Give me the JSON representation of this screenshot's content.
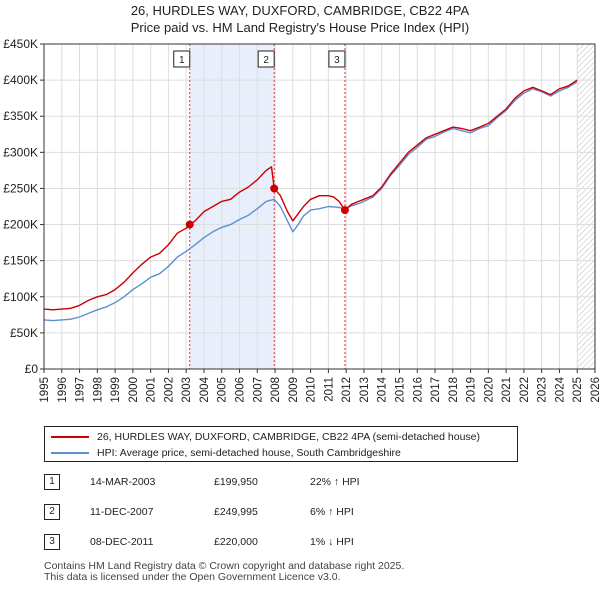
{
  "title_line1": "26, HURDLES WAY, DUXFORD, CAMBRIDGE, CB22 4PA",
  "title_line2": "Price paid vs. HM Land Registry's House Price Index (HPI)",
  "legend": {
    "red_label": "26, HURDLES WAY, DUXFORD, CAMBRIDGE, CB22 4PA (semi-detached house)",
    "blue_label": "HPI: Average price, semi-detached house, South Cambridgeshire"
  },
  "sales": [
    {
      "num": "1",
      "date": "14-MAR-2003",
      "price": "£199,950",
      "hpi": "22% ↑ HPI"
    },
    {
      "num": "2",
      "date": "11-DEC-2007",
      "price": "£249,995",
      "hpi": "6% ↑ HPI"
    },
    {
      "num": "3",
      "date": "08-DEC-2011",
      "price": "£220,000",
      "hpi": "1% ↓ HPI"
    }
  ],
  "footer": {
    "line1": "Contains HM Land Registry data © Crown copyright and database right 2025.",
    "line2": "This data is licensed under the Open Government Licence v3.0."
  },
  "colors": {
    "red": "#cc0000",
    "blue": "#5b8fd4",
    "shade": "#e8eefa",
    "hatch": "#bbbbbb",
    "vline": "#ee3333"
  },
  "chart_data": {
    "type": "line",
    "title": "Price paid vs. HM Land Registry's House Price Index (HPI)",
    "xlabel": "",
    "ylabel": "",
    "xlim": [
      1995,
      2026
    ],
    "ylim": [
      0,
      450000
    ],
    "y_ticks": [
      0,
      50000,
      100000,
      150000,
      200000,
      250000,
      300000,
      350000,
      400000,
      450000
    ],
    "y_tick_labels": [
      "£0",
      "£50K",
      "£100K",
      "£150K",
      "£200K",
      "£250K",
      "£300K",
      "£350K",
      "£400K",
      "£450K"
    ],
    "x_ticks": [
      1995,
      1996,
      1997,
      1998,
      1999,
      2000,
      2001,
      2002,
      2003,
      2004,
      2005,
      2006,
      2007,
      2008,
      2009,
      2010,
      2011,
      2012,
      2013,
      2014,
      2015,
      2016,
      2017,
      2018,
      2019,
      2020,
      2021,
      2022,
      2023,
      2024,
      2025,
      2026
    ],
    "x_tick_labels": [
      "1995",
      "1996",
      "1997",
      "1998",
      "1999",
      "2000",
      "2001",
      "2002",
      "2003",
      "2004",
      "2005",
      "2006",
      "2007",
      "2008",
      "2009",
      "2010",
      "2011",
      "2012",
      "2013",
      "2014",
      "2015",
      "2016",
      "2017",
      "2018",
      "2019",
      "2020",
      "2021",
      "2022",
      "2023",
      "2024",
      "2025",
      "2026"
    ],
    "shaded_ranges": [
      [
        2003.2,
        2007.95
      ]
    ],
    "future_hatch_from": 2025.0,
    "sale_markers": [
      {
        "label": "1",
        "x": 2003.2,
        "y": 199950
      },
      {
        "label": "2",
        "x": 2007.95,
        "y": 249995
      },
      {
        "label": "3",
        "x": 2011.93,
        "y": 220000
      }
    ],
    "series": [
      {
        "name": "26, HURDLES WAY, DUXFORD, CAMBRIDGE, CB22 4PA (semi-detached house)",
        "color": "#cc0000",
        "x": [
          1995.0,
          1995.5,
          1996.0,
          1996.5,
          1997.0,
          1997.5,
          1998.0,
          1998.5,
          1999.0,
          1999.5,
          2000.0,
          2000.5,
          2001.0,
          2001.5,
          2002.0,
          2002.5,
          2003.0,
          2003.2,
          2003.5,
          2004.0,
          2004.5,
          2005.0,
          2005.5,
          2006.0,
          2006.5,
          2007.0,
          2007.5,
          2007.8,
          2007.95,
          2008.3,
          2008.7,
          2009.0,
          2009.3,
          2009.6,
          2010.0,
          2010.5,
          2011.0,
          2011.3,
          2011.6,
          2011.93,
          2012.3,
          2012.7,
          2013.0,
          2013.5,
          2014.0,
          2014.5,
          2015.0,
          2015.5,
          2016.0,
          2016.5,
          2017.0,
          2017.5,
          2018.0,
          2018.5,
          2019.0,
          2019.5,
          2020.0,
          2020.5,
          2021.0,
          2021.5,
          2022.0,
          2022.5,
          2023.0,
          2023.5,
          2024.0,
          2024.5,
          2025.0
        ],
        "values": [
          83000,
          82000,
          83000,
          84000,
          88000,
          95000,
          100000,
          103000,
          110000,
          120000,
          133000,
          145000,
          155000,
          160000,
          172000,
          188000,
          195000,
          199950,
          205000,
          218000,
          225000,
          232000,
          235000,
          245000,
          252000,
          262000,
          275000,
          280000,
          249995,
          240000,
          218000,
          205000,
          215000,
          225000,
          235000,
          240000,
          240000,
          238000,
          232000,
          220000,
          228000,
          232000,
          235000,
          240000,
          252000,
          270000,
          285000,
          300000,
          310000,
          320000,
          325000,
          330000,
          335000,
          333000,
          330000,
          335000,
          340000,
          350000,
          360000,
          375000,
          385000,
          390000,
          385000,
          380000,
          388000,
          392000,
          400000
        ]
      },
      {
        "name": "HPI: Average price, semi-detached house, South Cambridgeshire",
        "color": "#5b8fd4",
        "x": [
          1995.0,
          1995.5,
          1996.0,
          1996.5,
          1997.0,
          1997.5,
          1998.0,
          1998.5,
          1999.0,
          1999.5,
          2000.0,
          2000.5,
          2001.0,
          2001.5,
          2002.0,
          2002.5,
          2003.0,
          2003.5,
          2004.0,
          2004.5,
          2005.0,
          2005.5,
          2006.0,
          2006.5,
          2007.0,
          2007.5,
          2007.95,
          2008.3,
          2008.7,
          2009.0,
          2009.3,
          2009.6,
          2010.0,
          2010.5,
          2011.0,
          2011.5,
          2011.93,
          2012.3,
          2012.7,
          2013.0,
          2013.5,
          2014.0,
          2014.5,
          2015.0,
          2015.5,
          2016.0,
          2016.5,
          2017.0,
          2017.5,
          2018.0,
          2018.5,
          2019.0,
          2019.5,
          2020.0,
          2020.5,
          2021.0,
          2021.5,
          2022.0,
          2022.5,
          2023.0,
          2023.5,
          2024.0,
          2024.5,
          2025.0
        ],
        "values": [
          68000,
          67000,
          68000,
          69000,
          72000,
          77000,
          82000,
          86000,
          92000,
          100000,
          110000,
          118000,
          127000,
          132000,
          142000,
          155000,
          163000,
          172000,
          182000,
          190000,
          196000,
          200000,
          207000,
          213000,
          222000,
          232000,
          235000,
          225000,
          205000,
          190000,
          200000,
          212000,
          220000,
          222000,
          225000,
          224000,
          222000,
          226000,
          229000,
          232000,
          238000,
          250000,
          268000,
          282000,
          297000,
          307000,
          318000,
          322000,
          328000,
          333000,
          330000,
          327000,
          333000,
          337000,
          348000,
          358000,
          372000,
          382000,
          388000,
          384000,
          378000,
          385000,
          390000,
          398000
        ]
      }
    ]
  }
}
